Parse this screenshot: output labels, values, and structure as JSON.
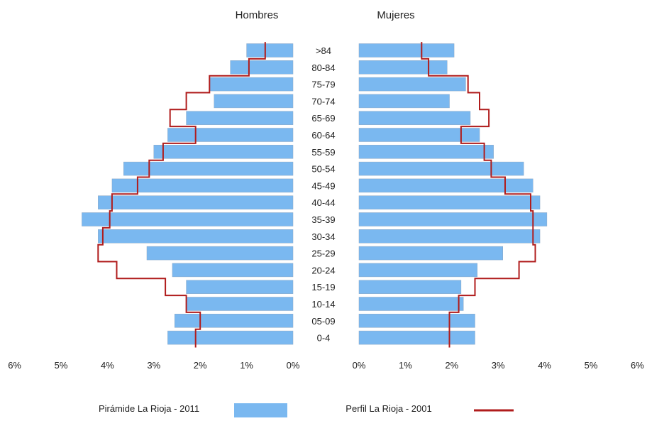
{
  "chart_data": {
    "type": "population-pyramid",
    "title_left": "Hombres",
    "title_right": "Mujeres",
    "age_groups": [
      ">84",
      "80-84",
      "75-79",
      "70-74",
      "65-69",
      "60-64",
      "55-59",
      "50-54",
      "45-49",
      "40-44",
      "35-39",
      "30-34",
      "25-29",
      "20-24",
      "15-19",
      "10-14",
      "05-09",
      "0-4"
    ],
    "series": [
      {
        "name": "Pirámide La Rioja - 2011",
        "kind": "bars",
        "color": "#7ab8f0",
        "men": [
          1.0,
          1.35,
          1.8,
          1.7,
          2.3,
          2.7,
          3.0,
          3.65,
          3.9,
          4.2,
          4.55,
          4.2,
          3.15,
          2.6,
          2.3,
          2.3,
          2.55,
          2.7
        ],
        "women": [
          2.05,
          1.9,
          2.3,
          1.95,
          2.4,
          2.6,
          2.9,
          3.55,
          3.75,
          3.9,
          4.05,
          3.9,
          3.1,
          2.55,
          2.2,
          2.25,
          2.5,
          2.5
        ]
      },
      {
        "name": "Perfil La Rioja - 2001",
        "kind": "line",
        "color": "#b01c1c",
        "men": [
          0.6,
          0.95,
          1.8,
          2.3,
          2.65,
          2.1,
          2.8,
          3.1,
          3.35,
          3.9,
          3.95,
          4.1,
          4.2,
          3.8,
          2.75,
          2.3,
          2.0,
          2.1
        ],
        "women": [
          1.35,
          1.5,
          2.35,
          2.6,
          2.8,
          2.2,
          2.7,
          2.85,
          3.15,
          3.7,
          3.75,
          3.75,
          3.8,
          3.45,
          2.5,
          2.15,
          1.95,
          1.95
        ]
      }
    ],
    "x_axis_left": {
      "ticks": [
        "6%",
        "5%",
        "4%",
        "3%",
        "2%",
        "1%",
        "0%"
      ],
      "max": 6
    },
    "x_axis_right": {
      "ticks": [
        "0%",
        "1%",
        "2%",
        "3%",
        "4%",
        "5%",
        "6%"
      ],
      "max": 6
    },
    "legend": {
      "position": "bottom"
    },
    "grid": false
  }
}
